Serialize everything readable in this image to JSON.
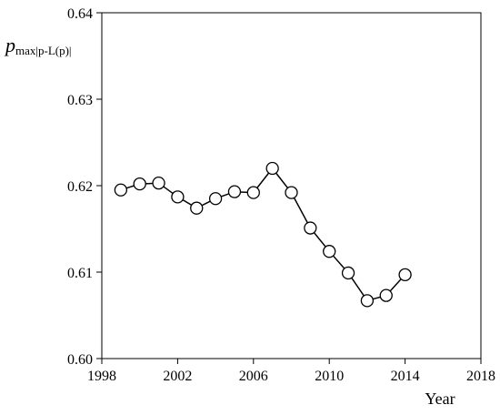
{
  "chart_data": {
    "type": "line",
    "xlabel": "Year",
    "ylabel": {
      "main": "p",
      "subscript": "max|p-L(p)|"
    },
    "xlim": [
      1998,
      2018
    ],
    "ylim": [
      0.6,
      0.64
    ],
    "x_ticks": [
      1998,
      2002,
      2006,
      2010,
      2014,
      2018
    ],
    "x_tick_labels": [
      "1998",
      "2002",
      "2006",
      "2010",
      "2014",
      "2018"
    ],
    "y_ticks": [
      0.6,
      0.61,
      0.62,
      0.63,
      0.64
    ],
    "y_tick_labels": [
      "0.60",
      "0.61",
      "0.62",
      "0.63",
      "0.64"
    ],
    "grid": false,
    "series": [
      {
        "marker": "open-circle",
        "color": "#000000",
        "x": [
          1999,
          2000,
          2001,
          2002,
          2003,
          2004,
          2005,
          2006,
          2007,
          2008,
          2009,
          2010,
          2011,
          2012,
          2013,
          2014
        ],
        "y": [
          0.6195,
          0.6202,
          0.6203,
          0.6187,
          0.6174,
          0.6185,
          0.6193,
          0.6192,
          0.622,
          0.6192,
          0.6151,
          0.6124,
          0.6099,
          0.6067,
          0.6073,
          0.6097
        ]
      }
    ]
  }
}
